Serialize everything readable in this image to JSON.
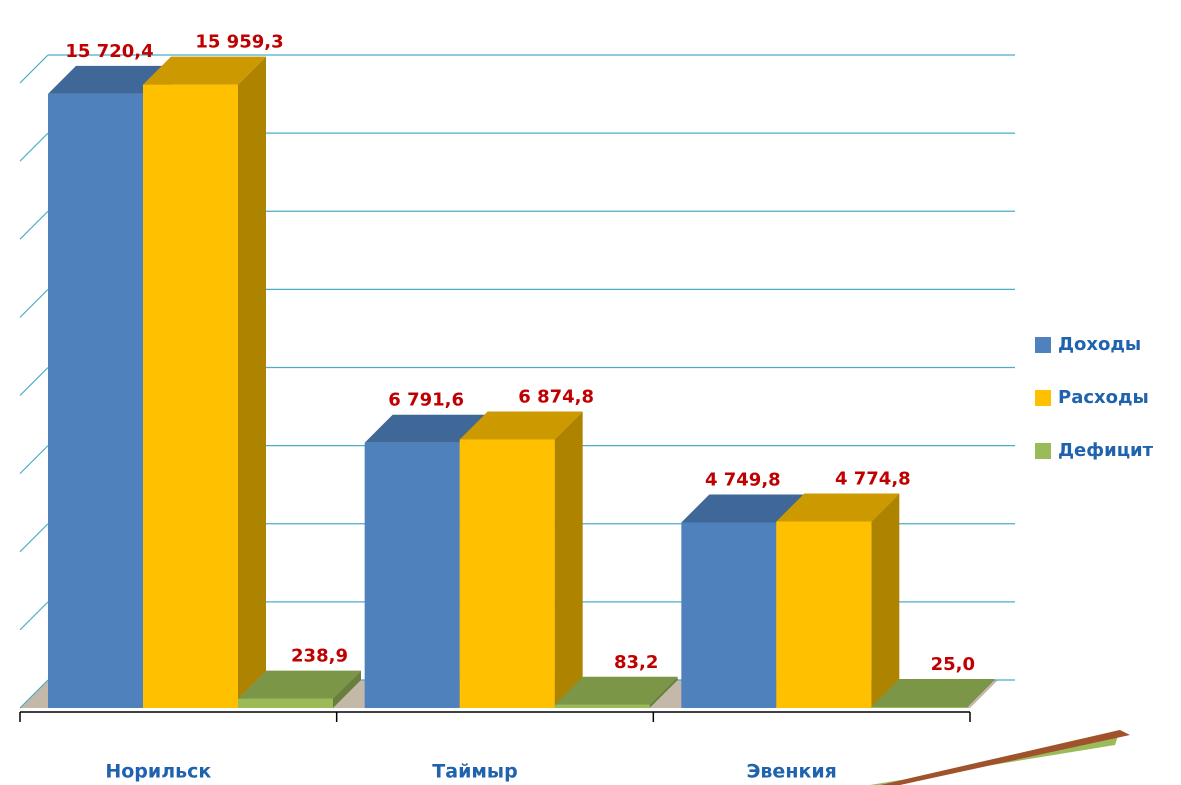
{
  "chart_data": {
    "type": "bar3d",
    "categories": [
      "Норильск",
      "Таймыр",
      "Эвенкия"
    ],
    "series": [
      {
        "name": "Доходы",
        "color": "#4f81bd",
        "values": [
          15720.4,
          6791.6,
          4749.8
        ],
        "value_labels": [
          "15 720,4",
          "6 791,6",
          "4 749,8"
        ]
      },
      {
        "name": "Расходы",
        "color": "#ffc000",
        "values": [
          15959.3,
          6874.8,
          4774.8
        ],
        "value_labels": [
          "15 959,3",
          "6 874,8",
          "4 774,8"
        ]
      },
      {
        "name": "Дефицит",
        "color": "#9bbb59",
        "values": [
          238.9,
          83.2,
          25.0
        ],
        "value_labels": [
          "238,9",
          "83,2",
          "25,0"
        ]
      }
    ],
    "ylim": [
      0,
      16000
    ],
    "yticks": [
      0,
      2000,
      4000,
      6000,
      8000,
      10000,
      12000,
      14000,
      16000
    ],
    "grid": true,
    "legend": "right"
  }
}
